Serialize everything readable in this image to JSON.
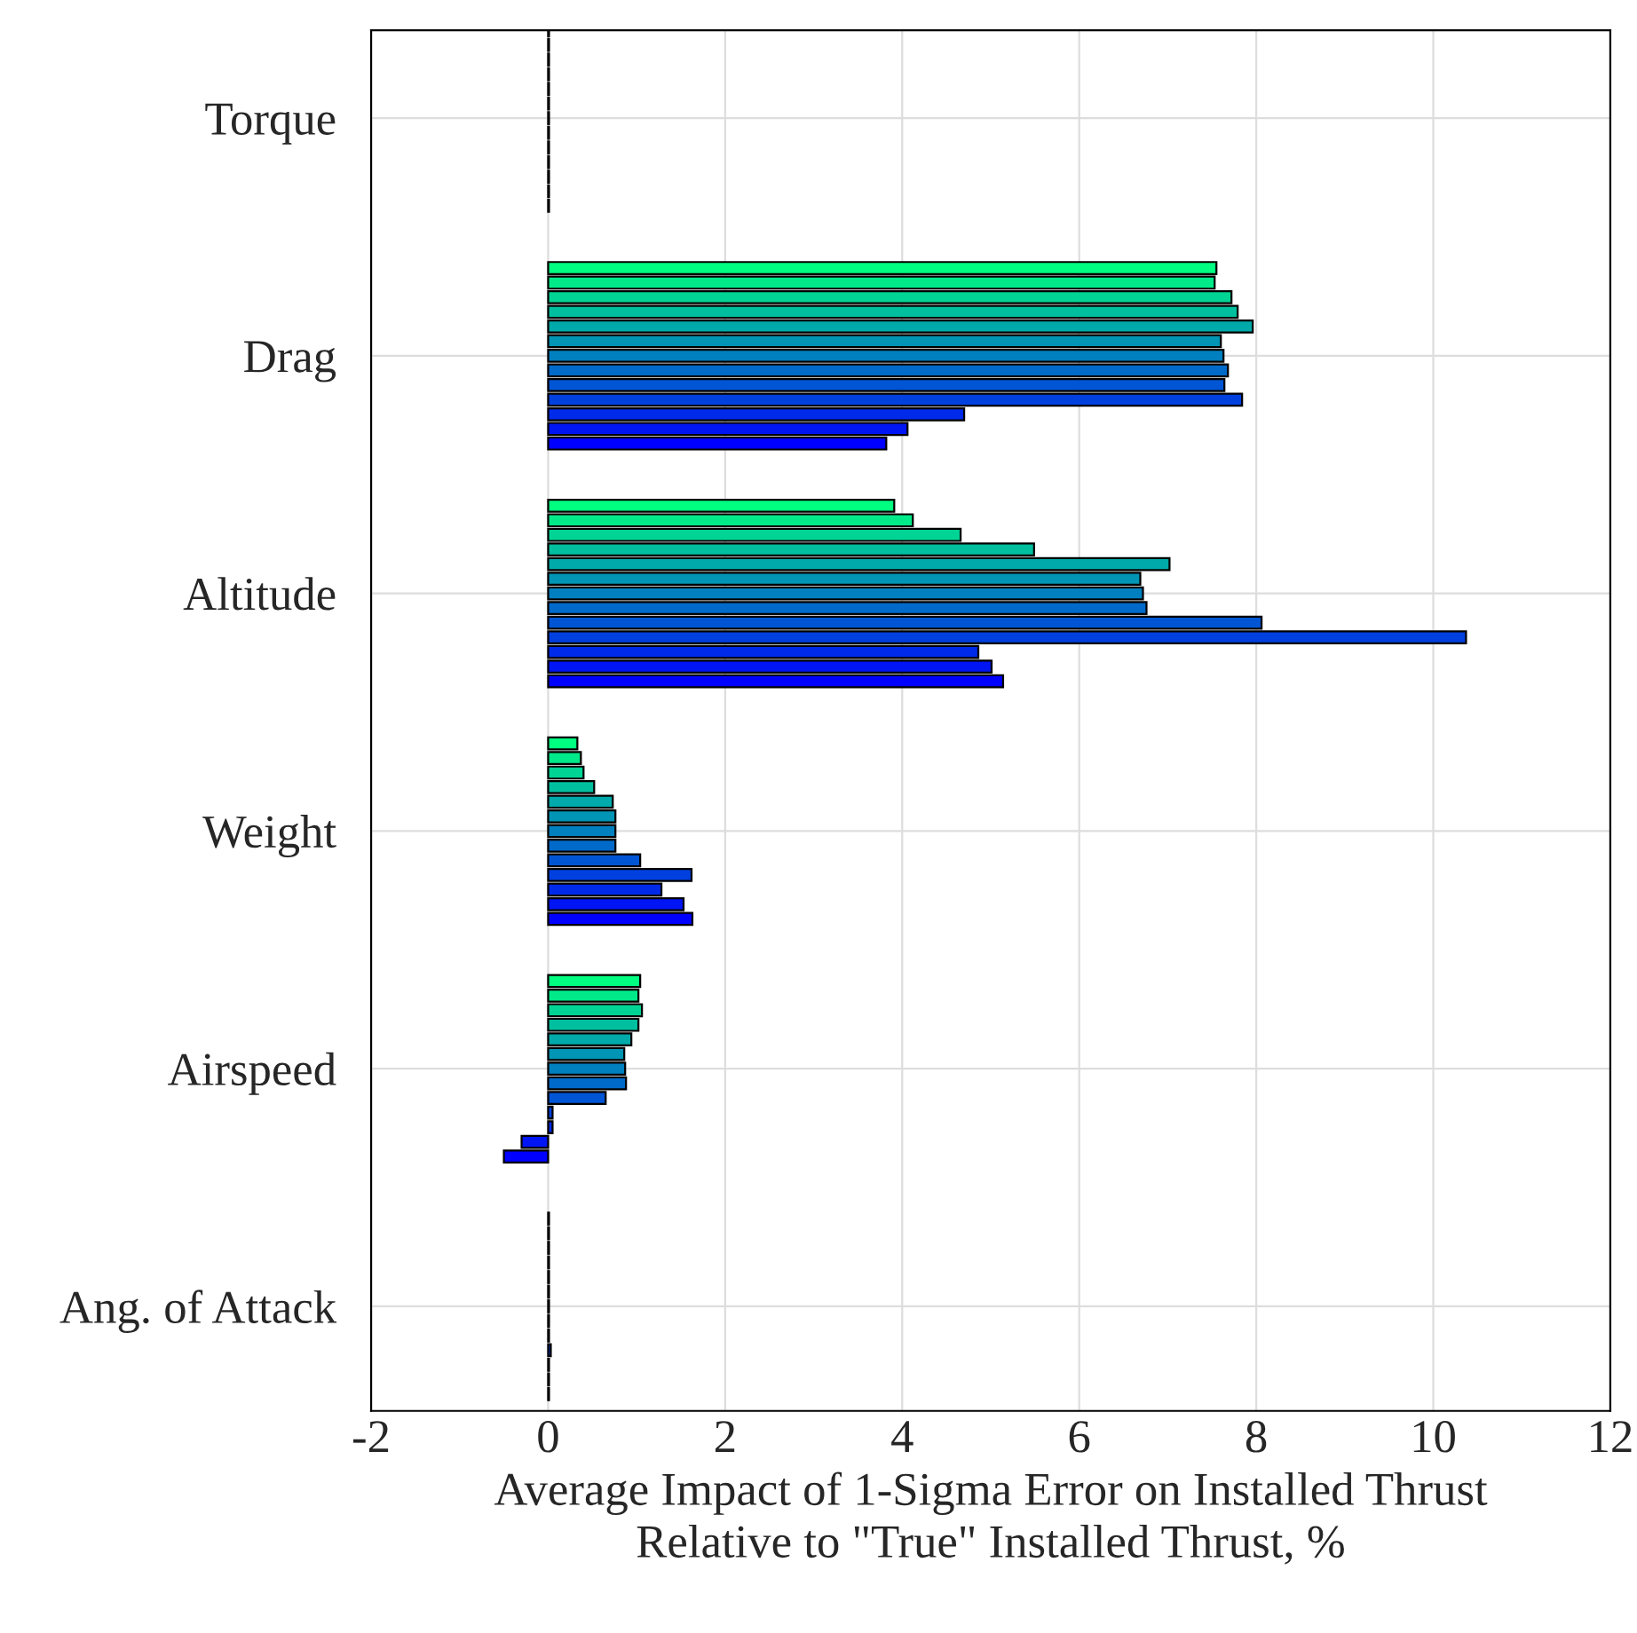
{
  "chart_data": {
    "type": "bar",
    "orientation": "horizontal",
    "xlabel": "Average Impact of 1-Sigma Error on Installed Thrust\nRelative to \"True\" Installed Thrust, %",
    "categories": [
      "Torque",
      "Drag",
      "Altitude",
      "Weight",
      "Airspeed",
      "Ang. of Attack"
    ],
    "xlim": [
      -2,
      12
    ],
    "xticks": [
      -2,
      0,
      2,
      4,
      6,
      8,
      10,
      12
    ],
    "grid": true,
    "series": [
      {
        "color": "#00ff80",
        "values": [
          0.01,
          7.55,
          3.91,
          0.33,
          1.04,
          0.01
        ]
      },
      {
        "color": "#00ea8a",
        "values": [
          0.01,
          7.53,
          4.12,
          0.37,
          1.02,
          0.01
        ]
      },
      {
        "color": "#00d495",
        "values": [
          0.01,
          7.72,
          4.66,
          0.4,
          1.06,
          0.01
        ]
      },
      {
        "color": "#00bf9f",
        "values": [
          0.01,
          7.79,
          5.49,
          0.52,
          1.02,
          0.01
        ]
      },
      {
        "color": "#00aaaa",
        "values": [
          0.01,
          7.96,
          7.02,
          0.73,
          0.94,
          0.01
        ]
      },
      {
        "color": "#0095b5",
        "values": [
          0.01,
          7.6,
          6.69,
          0.76,
          0.86,
          0.01
        ]
      },
      {
        "color": "#0080bf",
        "values": [
          0.01,
          7.63,
          6.72,
          0.76,
          0.87,
          0.01
        ]
      },
      {
        "color": "#006aca",
        "values": [
          0.01,
          7.68,
          6.76,
          0.76,
          0.88,
          0.01
        ]
      },
      {
        "color": "#0055d4",
        "values": [
          0.01,
          7.64,
          8.06,
          1.04,
          0.65,
          0.01
        ]
      },
      {
        "color": "#0040df",
        "values": [
          0.01,
          7.84,
          10.37,
          1.62,
          0.05,
          0.03
        ]
      },
      {
        "color": "#002aea",
        "values": [
          0.01,
          4.7,
          4.86,
          1.28,
          0.05,
          0.01
        ]
      },
      {
        "color": "#0015f4",
        "values": [
          0.01,
          4.06,
          5.01,
          1.53,
          -0.3,
          0.01
        ]
      },
      {
        "color": "#0000ff",
        "values": [
          0.01,
          3.82,
          5.14,
          1.63,
          -0.5,
          0.01
        ]
      }
    ]
  }
}
